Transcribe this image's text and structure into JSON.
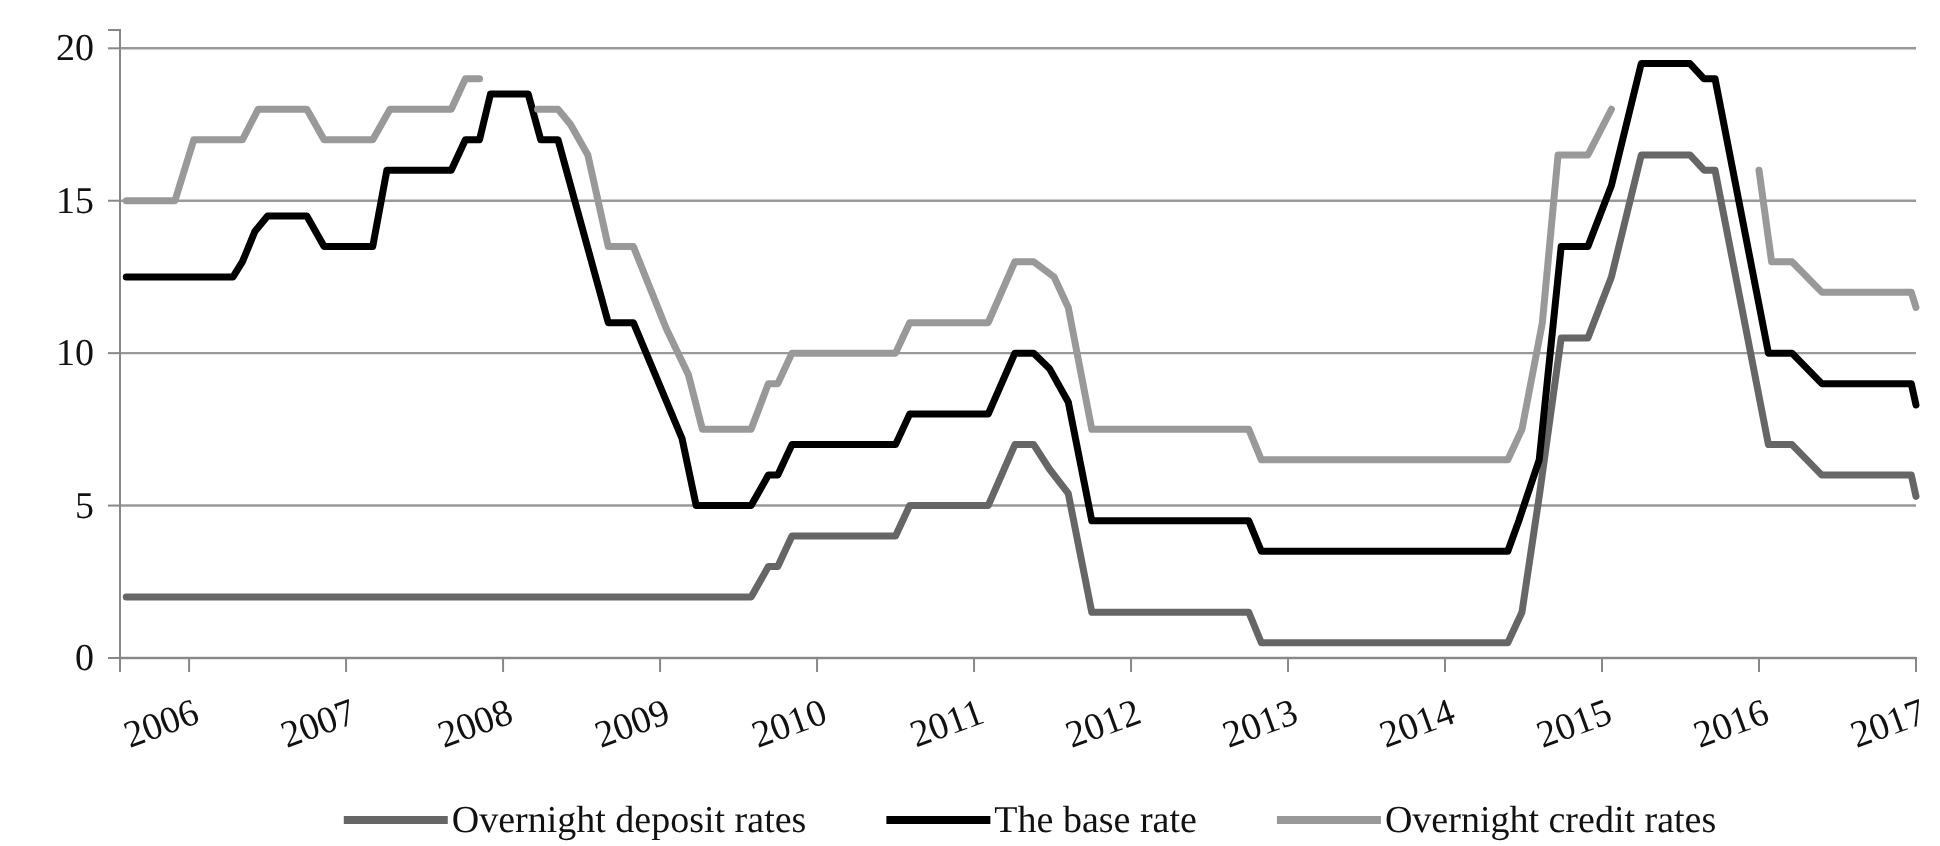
{
  "chart_data": {
    "type": "line",
    "xlim": [
      2005.56,
      2017.0
    ],
    "xticks": [
      2006,
      2007,
      2008,
      2009,
      2010,
      2011,
      2012,
      2013,
      2014,
      2015,
      2016,
      2017
    ],
    "ylim": [
      0,
      20.6
    ],
    "yticks": [
      0,
      5,
      10,
      15,
      20
    ],
    "grid": "y",
    "legend": "bottom",
    "marker": "none",
    "line_style": "solid",
    "series": [
      {
        "name": "Overnight deposit rates",
        "color": "#666666",
        "x": [
          2005.6,
          2009.58,
          2009.69,
          2009.75,
          2009.84,
          2010.5,
          2010.59,
          2011.09,
          2011.26,
          2011.38,
          2011.48,
          2011.6,
          2011.75,
          2012.75,
          2012.83,
          2014.4,
          2014.49,
          2014.6,
          2014.74,
          2014.91,
          2015.06,
          2015.25,
          2015.56,
          2015.65,
          2015.72,
          2016.06,
          2016.21,
          2016.4,
          2016.97,
          2017.0
        ],
        "values": [
          2,
          2,
          3,
          3,
          4,
          4,
          5,
          5,
          7,
          7,
          6.2,
          5.4,
          1.5,
          1.5,
          0.5,
          0.5,
          1.5,
          5.3,
          10.5,
          10.5,
          12.5,
          16.5,
          16.5,
          16,
          16,
          7,
          7,
          6,
          6,
          5.3
        ]
      },
      {
        "name": "The base rate",
        "color": "#000000",
        "x": [
          2005.6,
          2006.28,
          2006.34,
          2006.42,
          2006.5,
          2006.75,
          2006.86,
          2007.17,
          2007.26,
          2007.67,
          2007.76,
          2007.85,
          2007.92,
          2008.16,
          2008.24,
          2008.35,
          2008.67,
          2008.83,
          2009.14,
          2009.23,
          2009.58,
          2009.69,
          2009.75,
          2009.84,
          2010.5,
          2010.59,
          2011.09,
          2011.26,
          2011.38,
          2011.48,
          2011.6,
          2011.75,
          2012.75,
          2012.83,
          2014.4,
          2014.47,
          2014.6,
          2014.74,
          2014.91,
          2015.06,
          2015.25,
          2015.56,
          2015.65,
          2015.72,
          2016.06,
          2016.21,
          2016.4,
          2016.97,
          2017.0
        ],
        "values": [
          12.5,
          12.5,
          13,
          14,
          14.5,
          14.5,
          13.5,
          13.5,
          16,
          16,
          17,
          17,
          18.5,
          18.5,
          17,
          17,
          11,
          11,
          7.2,
          5,
          5,
          6,
          6,
          7,
          7,
          8,
          8,
          10,
          10,
          9.5,
          8.4,
          4.5,
          4.5,
          3.5,
          3.5,
          4.5,
          6.5,
          13.5,
          13.5,
          15.5,
          19.5,
          19.5,
          19,
          19,
          10,
          10,
          9,
          9,
          8.3
        ]
      },
      {
        "name": "Overnight credit rates",
        "color": "#999999",
        "x": [
          2005.6,
          2005.91,
          2006.03,
          2006.34,
          2006.44,
          2006.75,
          2006.86,
          2007.17,
          2007.28,
          2007.67,
          2007.76,
          2007.85,
          2007.92,
          2008.0,
          2008.16,
          2008.22,
          2008.35,
          2008.43,
          2008.54,
          2008.67,
          2008.83,
          2009.04,
          2009.18,
          2009.27,
          2009.58,
          2009.69,
          2009.75,
          2009.84,
          2010.5,
          2010.59,
          2011.09,
          2011.26,
          2011.38,
          2011.51,
          2011.6,
          2011.75,
          2012.75,
          2012.83,
          2014.4,
          2014.49,
          2014.62,
          2014.72,
          2014.91,
          2015.06,
          2015.16,
          2015.5,
          2015.79,
          2016.0,
          2016.08,
          2016.21,
          2016.4,
          2016.97,
          2017.0
        ],
        "values": [
          15,
          15,
          17,
          17,
          18,
          18,
          17,
          17,
          18,
          18,
          19,
          19,
          null,
          null,
          null,
          18,
          18,
          17.5,
          16.5,
          13.5,
          13.5,
          10.8,
          9.3,
          7.5,
          7.5,
          9,
          9,
          10,
          10,
          11,
          11,
          13,
          13,
          12.5,
          11.5,
          7.5,
          7.5,
          6.5,
          6.5,
          7.5,
          11,
          16.5,
          16.5,
          18,
          null,
          null,
          null,
          16,
          13,
          13,
          12,
          12,
          11.5
        ]
      }
    ]
  }
}
